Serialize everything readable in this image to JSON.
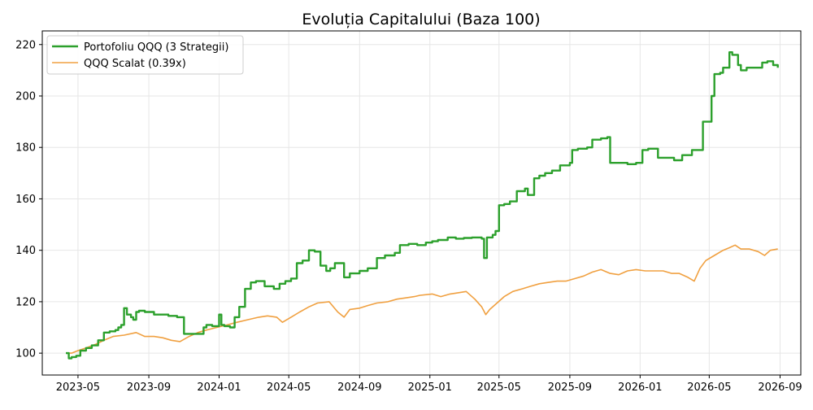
{
  "chart_data": {
    "type": "line",
    "title": "Evoluția Capitalului (Baza 100)",
    "xlabel": "",
    "ylabel": "",
    "xlim": [
      "2023-02-28",
      "2026-10-07"
    ],
    "ylim": [
      91.5,
      225.3
    ],
    "grid": true,
    "legend": "top-left",
    "x_ticks": [
      "2023-05",
      "2023-09",
      "2024-01",
      "2024-05",
      "2024-09",
      "2025-01",
      "2025-05",
      "2025-09",
      "2026-01",
      "2026-05",
      "2026-09"
    ],
    "y_ticks": [
      100,
      120,
      140,
      160,
      180,
      200,
      220
    ],
    "series": [
      {
        "name": "Portofoliu QQQ (3 Strategii)",
        "color": "#2ca02c",
        "x": [
          "2023-04-10",
          "2023-04-15",
          "2023-04-20",
          "2023-04-28",
          "2023-05-05",
          "2023-05-15",
          "2023-05-25",
          "2023-06-05",
          "2023-06-15",
          "2023-06-25",
          "2023-07-05",
          "2023-07-10",
          "2023-07-15",
          "2023-07-20",
          "2023-07-25",
          "2023-08-01",
          "2023-08-05",
          "2023-08-10",
          "2023-08-15",
          "2023-08-25",
          "2023-09-10",
          "2023-09-25",
          "2023-10-05",
          "2023-10-20",
          "2023-11-01",
          "2023-11-05",
          "2023-11-15",
          "2023-11-25",
          "2023-12-05",
          "2023-12-10",
          "2023-12-20",
          "2023-12-28",
          "2024-01-01",
          "2024-01-05",
          "2024-01-10",
          "2024-01-20",
          "2024-01-28",
          "2024-02-05",
          "2024-02-15",
          "2024-02-25",
          "2024-03-05",
          "2024-03-20",
          "2024-04-05",
          "2024-04-15",
          "2024-04-25",
          "2024-05-05",
          "2024-05-15",
          "2024-05-25",
          "2024-06-05",
          "2024-06-15",
          "2024-06-25",
          "2024-07-05",
          "2024-07-12",
          "2024-07-20",
          "2024-08-05",
          "2024-08-15",
          "2024-09-01",
          "2024-09-15",
          "2024-10-01",
          "2024-10-15",
          "2024-11-01",
          "2024-11-10",
          "2024-11-25",
          "2024-12-10",
          "2024-12-25",
          "2025-01-05",
          "2025-01-15",
          "2025-02-01",
          "2025-02-15",
          "2025-03-01",
          "2025-03-15",
          "2025-04-01",
          "2025-04-05",
          "2025-04-10",
          "2025-04-20",
          "2025-04-25",
          "2025-05-01",
          "2025-05-10",
          "2025-05-20",
          "2025-06-01",
          "2025-06-15",
          "2025-06-20",
          "2025-07-01",
          "2025-07-10",
          "2025-07-20",
          "2025-08-01",
          "2025-08-15",
          "2025-09-01",
          "2025-09-05",
          "2025-09-15",
          "2025-10-01",
          "2025-10-10",
          "2025-10-25",
          "2025-11-05",
          "2025-11-10",
          "2025-11-25",
          "2025-12-10",
          "2025-12-25",
          "2026-01-05",
          "2026-01-15",
          "2026-02-01",
          "2026-02-15",
          "2026-03-01",
          "2026-03-15",
          "2026-04-01",
          "2026-04-20",
          "2026-04-25",
          "2026-05-05",
          "2026-05-10",
          "2026-05-20",
          "2026-05-25",
          "2026-06-05",
          "2026-06-10",
          "2026-06-20",
          "2026-06-25",
          "2026-07-05",
          "2026-07-15",
          "2026-08-01",
          "2026-08-10",
          "2026-08-20",
          "2026-08-28"
        ],
        "values": [
          100,
          98,
          98.5,
          99,
          101,
          102,
          103,
          105,
          108,
          108.5,
          109,
          110,
          111,
          117.5,
          115,
          114,
          113,
          116,
          116.5,
          116,
          115,
          115,
          114.5,
          114,
          107.5,
          107.5,
          107.5,
          107.5,
          110,
          111,
          110.5,
          110.5,
          115,
          111,
          110.5,
          110,
          114,
          118,
          125,
          127.5,
          128,
          126,
          125,
          127,
          128,
          129,
          135,
          136,
          140,
          139.5,
          134,
          132,
          133,
          135,
          129.5,
          131,
          132,
          133,
          137,
          138,
          139,
          142,
          142.5,
          142,
          143,
          143.5,
          144,
          145,
          144.5,
          144.8,
          145,
          144.5,
          137,
          145,
          146,
          147.5,
          157.5,
          158,
          159,
          163,
          164,
          161.5,
          168,
          169,
          170,
          171,
          173,
          174,
          179,
          179.5,
          180,
          183,
          183.5,
          184,
          174,
          174,
          173.5,
          174,
          179,
          179.5,
          176,
          176,
          175,
          177,
          179,
          190,
          190,
          200,
          208.5,
          209,
          211,
          217,
          216,
          212,
          210,
          211,
          211,
          213,
          213.5,
          212,
          211
        ]
      },
      {
        "name": "QQQ Scalat (0.39x)",
        "color": "#f0a040",
        "x": [
          "2023-04-10",
          "2023-04-20",
          "2023-05-01",
          "2023-05-15",
          "2023-06-01",
          "2023-06-15",
          "2023-07-01",
          "2023-07-20",
          "2023-08-10",
          "2023-08-25",
          "2023-09-10",
          "2023-09-25",
          "2023-10-10",
          "2023-10-25",
          "2023-11-10",
          "2023-11-25",
          "2023-12-10",
          "2023-12-28",
          "2024-01-15",
          "2024-02-01",
          "2024-02-20",
          "2024-03-10",
          "2024-03-25",
          "2024-04-10",
          "2024-04-20",
          "2024-05-05",
          "2024-05-20",
          "2024-06-05",
          "2024-06-20",
          "2024-07-10",
          "2024-07-25",
          "2024-08-05",
          "2024-08-15",
          "2024-09-01",
          "2024-09-15",
          "2024-10-01",
          "2024-10-20",
          "2024-11-05",
          "2024-11-20",
          "2024-12-05",
          "2024-12-15",
          "2025-01-05",
          "2025-01-20",
          "2025-02-05",
          "2025-02-20",
          "2025-03-05",
          "2025-03-20",
          "2025-04-01",
          "2025-04-08",
          "2025-04-15",
          "2025-04-25",
          "2025-05-10",
          "2025-05-25",
          "2025-06-10",
          "2025-06-25",
          "2025-07-10",
          "2025-07-25",
          "2025-08-10",
          "2025-08-25",
          "2025-09-10",
          "2025-09-25",
          "2025-10-10",
          "2025-10-25",
          "2025-11-10",
          "2025-11-25",
          "2025-12-10",
          "2025-12-25",
          "2026-01-10",
          "2026-01-25",
          "2026-02-10",
          "2026-02-25",
          "2026-03-10",
          "2026-03-25",
          "2026-04-05",
          "2026-04-15",
          "2026-04-25",
          "2026-05-10",
          "2026-05-25",
          "2026-06-05",
          "2026-06-15",
          "2026-06-25",
          "2026-07-10",
          "2026-07-25",
          "2026-08-05",
          "2026-08-15",
          "2026-08-28"
        ],
        "values": [
          100,
          100,
          101,
          102,
          103.5,
          105,
          106.5,
          107,
          108,
          106.5,
          106.5,
          106,
          105,
          104.5,
          106.5,
          108,
          109,
          110,
          111,
          112,
          113,
          114,
          114.5,
          114,
          112,
          114,
          116,
          118,
          119.5,
          120,
          116,
          114,
          117,
          117.5,
          118.5,
          119.5,
          120,
          121,
          121.5,
          122,
          122.5,
          123,
          122,
          123,
          123.5,
          124,
          121,
          118,
          115,
          117,
          119,
          122,
          124,
          125,
          126,
          127,
          127.5,
          128,
          128,
          129,
          130,
          131.5,
          132.5,
          131,
          130.5,
          132,
          132.5,
          132,
          132,
          132,
          131,
          131,
          129.5,
          128,
          133,
          136,
          138,
          140,
          141,
          142,
          140.5,
          140.5,
          139.5,
          138,
          140,
          140.5
        ]
      }
    ]
  }
}
